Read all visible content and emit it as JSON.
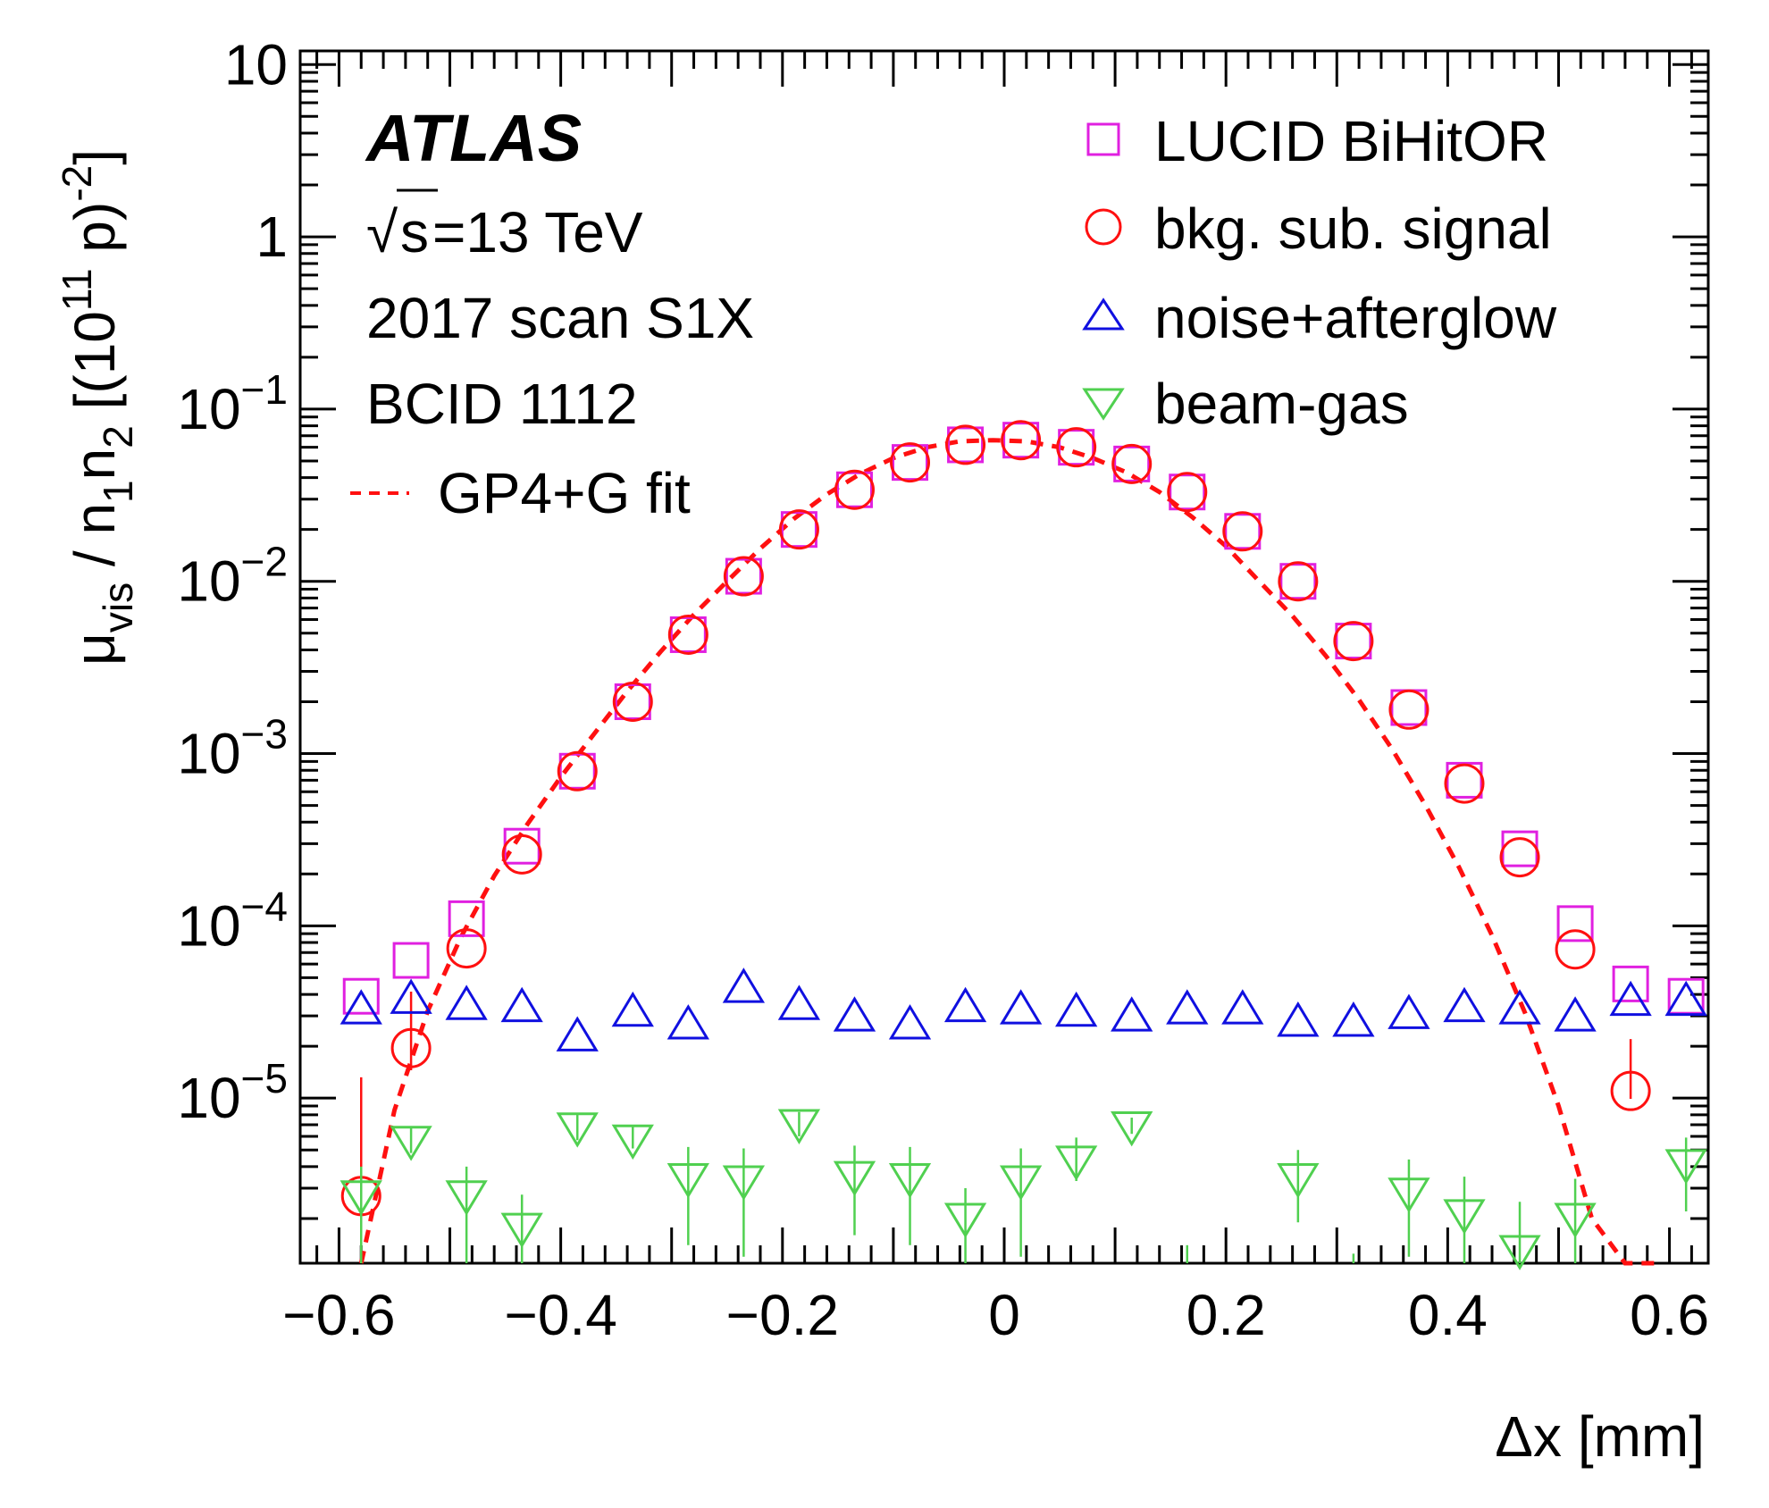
{
  "chart_data": {
    "type": "scatter",
    "yscale": "log",
    "xlim": [
      -0.635,
      0.635
    ],
    "ylim": [
      1.1e-06,
      12
    ],
    "xticks": [
      -0.6,
      -0.4,
      -0.2,
      0,
      0.2,
      0.4,
      0.6
    ],
    "xtick_labels": [
      "−0.6",
      "−0.4",
      "−0.2",
      "0",
      "0.2",
      "0.4",
      "0.6"
    ],
    "yticks": [
      {
        "value": 10,
        "base": "10",
        "exp": ""
      },
      {
        "value": 1,
        "base": "1",
        "exp": ""
      },
      {
        "value": 0.1,
        "base": "10",
        "exp": "−1"
      },
      {
        "value": 0.01,
        "base": "10",
        "exp": "−2"
      },
      {
        "value": 0.001,
        "base": "10",
        "exp": "−3"
      },
      {
        "value": 0.0001,
        "base": "10",
        "exp": "−4"
      },
      {
        "value": 1e-05,
        "base": "10",
        "exp": "−5"
      }
    ],
    "xlabel": "Δx [mm]",
    "ylabel": {
      "mu": "μ",
      "vis": "vis",
      "slash": " / n",
      "one": "1",
      "n": "n",
      "two": "2",
      "bracket": " [(10",
      "eleven": "11",
      "p": " p)",
      "minus2": "-2",
      "close": "]"
    },
    "annotations": {
      "experiment": "ATLAS",
      "energy_sqrt": "√",
      "energy_s": "s",
      "energy_rest": "=13 TeV",
      "scan": "2017 scan S1X",
      "bcid": "BCID 1112"
    },
    "legend_placement": "top-right",
    "series": [
      {
        "name": "LUCID BiHitOR",
        "marker": "open-square",
        "color": "#e020e0",
        "x": [
          -0.58,
          -0.535,
          -0.485,
          -0.435,
          -0.385,
          -0.335,
          -0.285,
          -0.235,
          -0.185,
          -0.135,
          -0.085,
          -0.035,
          0.015,
          0.065,
          0.115,
          0.165,
          0.215,
          0.265,
          0.315,
          0.365,
          0.415,
          0.465,
          0.515,
          0.565,
          0.615
        ],
        "y": [
          3.9e-05,
          6.3e-05,
          0.00011,
          0.00029,
          0.00079,
          0.002,
          0.0049,
          0.0107,
          0.02,
          0.034,
          0.049,
          0.062,
          0.066,
          0.06,
          0.048,
          0.033,
          0.0195,
          0.01,
          0.0045,
          0.00185,
          0.0007,
          0.00028,
          0.000103,
          4.6e-05,
          3.9e-05
        ]
      },
      {
        "name": "bkg. sub. signal",
        "marker": "open-circle",
        "color": "#ff1010",
        "x": [
          -0.58,
          -0.535,
          -0.485,
          -0.435,
          -0.385,
          -0.335,
          -0.285,
          -0.235,
          -0.185,
          -0.135,
          -0.085,
          -0.035,
          0.015,
          0.065,
          0.115,
          0.165,
          0.215,
          0.265,
          0.315,
          0.365,
          0.415,
          0.465,
          0.515,
          0.565
        ],
        "y": [
          2.7e-06,
          1.95e-05,
          7.4e-05,
          0.00026,
          0.00079,
          0.002,
          0.0049,
          0.0107,
          0.02,
          0.034,
          0.049,
          0.062,
          0.066,
          0.06,
          0.048,
          0.033,
          0.0195,
          0.01,
          0.0045,
          0.0018,
          0.00067,
          0.00025,
          7.3e-05,
          1.1e-05
        ],
        "err_low": [
          1.1e-06,
          5e-06,
          0,
          0,
          0,
          0,
          0,
          0,
          0,
          0,
          0,
          0,
          0,
          0,
          0,
          0,
          0,
          0,
          0,
          0,
          0,
          0,
          0,
          1.1e-06
        ],
        "err_high": [
          1.05e-05,
          2.2e-05,
          0,
          0,
          0,
          0,
          0,
          0,
          0,
          0,
          0,
          0,
          0,
          0,
          0,
          0,
          0,
          0,
          0,
          0,
          0,
          0,
          0,
          1.1e-05
        ]
      },
      {
        "name": "noise+afterglow",
        "marker": "open-triangle-up",
        "color": "#1010e0",
        "x": [
          -0.58,
          -0.535,
          -0.485,
          -0.435,
          -0.385,
          -0.335,
          -0.285,
          -0.235,
          -0.185,
          -0.135,
          -0.085,
          -0.035,
          0.015,
          0.065,
          0.115,
          0.165,
          0.215,
          0.265,
          0.315,
          0.365,
          0.415,
          0.465,
          0.515,
          0.565,
          0.615
        ],
        "y": [
          3.3e-05,
          3.8e-05,
          3.5e-05,
          3.4e-05,
          2.3e-05,
          3.2e-05,
          2.7e-05,
          4.4e-05,
          3.5e-05,
          3e-05,
          2.7e-05,
          3.4e-05,
          3.3e-05,
          3.2e-05,
          3e-05,
          3.3e-05,
          3.3e-05,
          2.8e-05,
          2.8e-05,
          3.1e-05,
          3.4e-05,
          3.3e-05,
          3e-05,
          3.7e-05,
          3.7e-05
        ]
      },
      {
        "name": "beam-gas",
        "marker": "open-triangle-down",
        "color": "#50d050",
        "x": [
          -0.58,
          -0.535,
          -0.485,
          -0.435,
          -0.385,
          -0.335,
          -0.285,
          -0.235,
          -0.185,
          -0.135,
          -0.085,
          -0.035,
          0.015,
          0.065,
          0.115,
          0.165,
          0.265,
          0.315,
          0.365,
          0.415,
          0.465,
          0.515,
          0.615
        ],
        "y": [
          2.7e-06,
          5.6e-06,
          2.7e-06,
          1.75e-06,
          6.7e-06,
          5.7e-06,
          3.4e-06,
          3.3e-06,
          7e-06,
          3.5e-06,
          3.4e-06,
          2e-06,
          3.3e-06,
          4.3e-06,
          6.8e-06,
          9e-07,
          3.4e-06,
          9.5e-07,
          2.8e-06,
          2.1e-06,
          1.3e-06,
          2e-06,
          4.1e-06
        ],
        "err_low": [
          1.6e-06,
          8e-07,
          1.6e-06,
          1e-06,
          1e-06,
          6e-07,
          2e-06,
          2.1e-06,
          1e-06,
          1.9e-06,
          2e-06,
          1e-06,
          2.1e-06,
          1e-06,
          6e-07,
          0,
          1.5e-06,
          0,
          1.6e-06,
          1e-06,
          7e-07,
          1.2e-06,
          1.9e-06
        ],
        "err_high": [
          1.3e-06,
          1.2e-06,
          1.3e-06,
          1e-06,
          1.3e-06,
          1.2e-06,
          1.8e-06,
          1.8e-06,
          1.3e-06,
          1.8e-06,
          1.8e-06,
          1e-06,
          1.8e-06,
          1.6e-06,
          9e-07,
          5e-07,
          1.6e-06,
          3e-07,
          1.6e-06,
          1.4e-06,
          1.2e-06,
          1.4e-06,
          1.8e-06
        ]
      }
    ],
    "fit": {
      "name": "GP4+G fit",
      "style": "dashed",
      "color": "#ff1010",
      "x": [
        -0.58,
        -0.55,
        -0.52,
        -0.49,
        -0.46,
        -0.43,
        -0.4,
        -0.37,
        -0.34,
        -0.31,
        -0.28,
        -0.25,
        -0.22,
        -0.19,
        -0.16,
        -0.13,
        -0.1,
        -0.07,
        -0.04,
        -0.01,
        0.02,
        0.05,
        0.08,
        0.11,
        0.14,
        0.17,
        0.2,
        0.23,
        0.26,
        0.29,
        0.32,
        0.35,
        0.38,
        0.41,
        0.44,
        0.47,
        0.5,
        0.53,
        0.56,
        0.59
      ],
      "y": [
        1.1e-06,
        8.5e-06,
        3.2e-05,
        8.6e-05,
        0.000195,
        0.00039,
        0.00073,
        0.0013,
        0.0023,
        0.0039,
        0.0064,
        0.01,
        0.0155,
        0.023,
        0.032,
        0.042,
        0.052,
        0.06,
        0.065,
        0.066,
        0.065,
        0.06,
        0.052,
        0.043,
        0.033,
        0.0235,
        0.016,
        0.01,
        0.0063,
        0.0037,
        0.00205,
        0.00106,
        0.0005,
        0.00022,
        8.8e-05,
        3.1e-05,
        9e-06,
        2e-06,
        1.1e-06,
        1.1e-06
      ]
    }
  }
}
